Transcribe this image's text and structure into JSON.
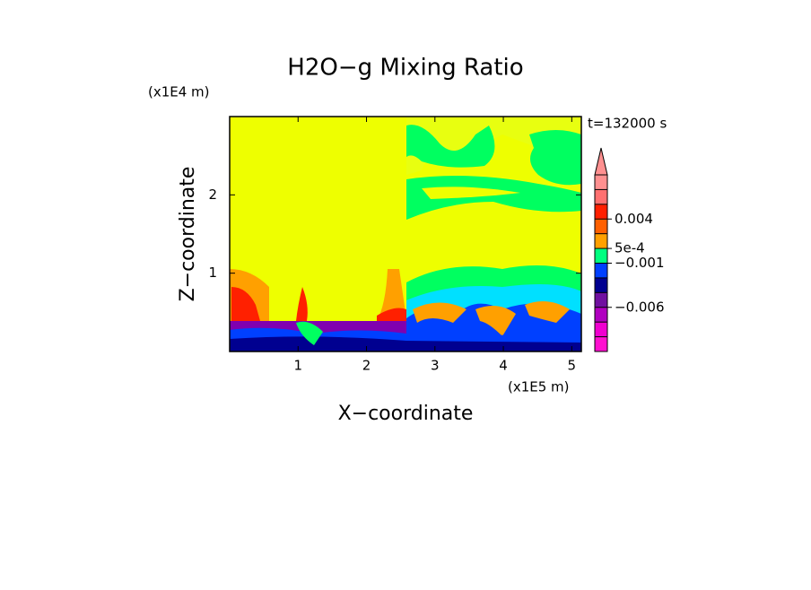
{
  "chart_data": {
    "type": "contour",
    "title": "H2O−g Mixing Ratio",
    "xlabel": "X−coordinate",
    "ylabel": "Z−coordinate",
    "x_unit": "(x1E5 m)",
    "y_unit": "(x1E4 m)",
    "annotation": "t=132000 s",
    "xlim": [
      0,
      5.14
    ],
    "ylim": [
      0,
      3.0
    ],
    "xticks": [
      1,
      2,
      3,
      4,
      5
    ],
    "yticks": [
      1,
      2
    ],
    "colorbar": {
      "levels": [
        -0.012,
        -0.01,
        -0.008,
        -0.006,
        -0.004,
        -0.002,
        -0.001,
        0.0005,
        0.002,
        0.004,
        0.006,
        0.008,
        0.01
      ],
      "colors": [
        "#ff10d0",
        "#f000d0",
        "#b000c0",
        "#7010a0",
        "#000090",
        "#0040ff",
        "#00ff80",
        "#ffa000",
        "#ff6000",
        "#ff2000",
        "#ff7070",
        "#ff9090"
      ],
      "ticks": [
        0.004,
        {
          "value": 0.0005,
          "label": "5e-4"
        },
        {
          "value": -0.001,
          "label": "−0.001"
        },
        {
          "value": -0.006,
          "label": "−0.006"
        }
      ],
      "extend": "max"
    }
  }
}
